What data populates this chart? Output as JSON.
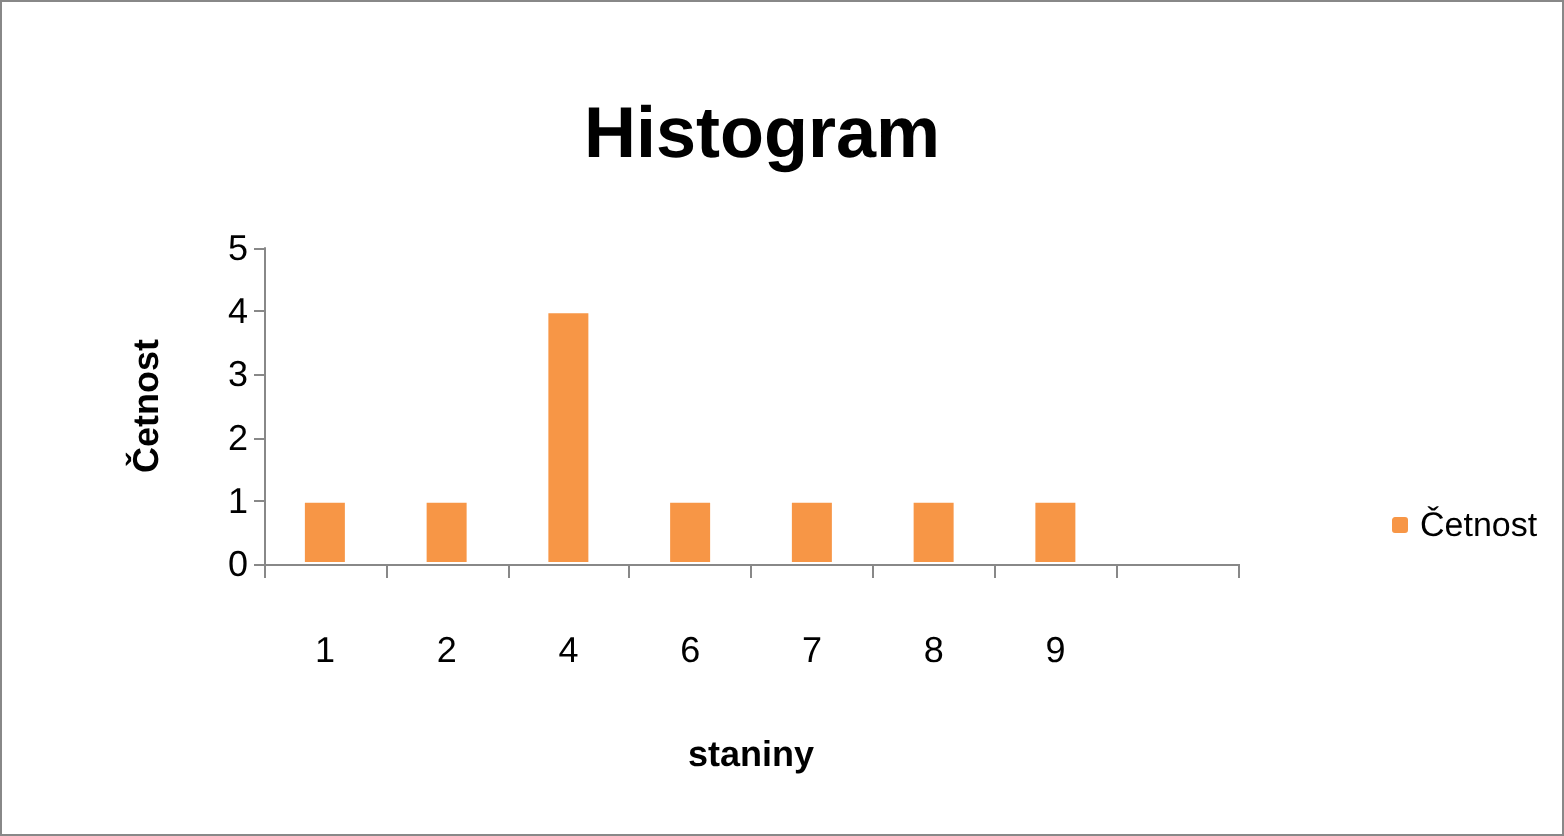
{
  "chart_data": {
    "type": "bar",
    "title": "Histogram",
    "xlabel": "staniny",
    "ylabel": "Četnost",
    "categories": [
      "1",
      "2",
      "4",
      "6",
      "7",
      "8",
      "9",
      null
    ],
    "series": [
      {
        "name": "Četnost",
        "color": "#f79646",
        "values": [
          1,
          1,
          4,
          1,
          1,
          1,
          1,
          null
        ]
      }
    ],
    "ylim": [
      0,
      5
    ],
    "yticks": [
      0,
      1,
      2,
      3,
      4,
      5
    ],
    "grid": false,
    "legend": "right"
  }
}
